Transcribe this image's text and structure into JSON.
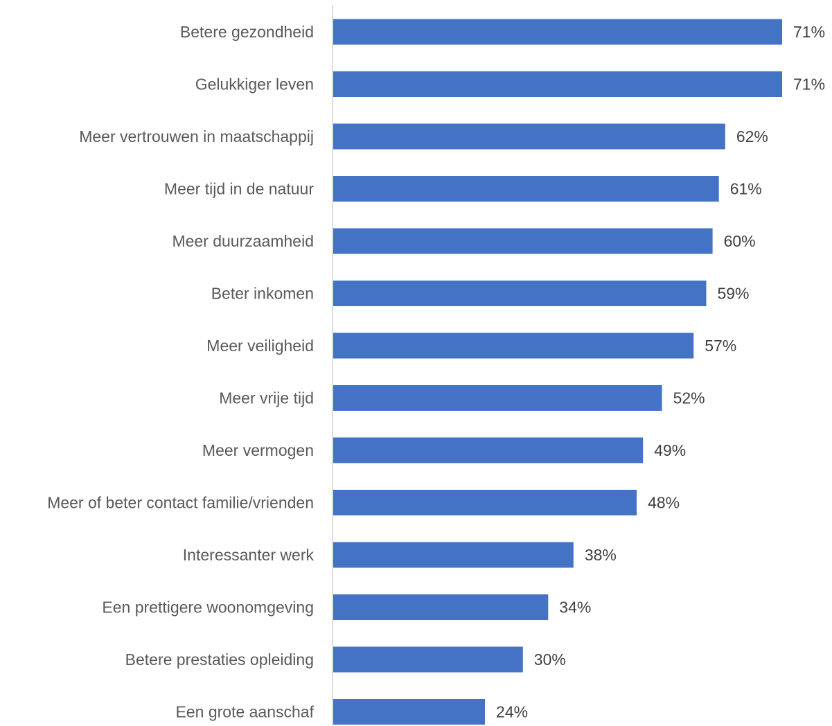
{
  "chart_data": {
    "type": "bar",
    "orientation": "horizontal",
    "categories": [
      "Betere gezondheid",
      "Gelukkiger leven",
      "Meer vertrouwen in maatschappij",
      "Meer tijd in de natuur",
      "Meer duurzaamheid",
      "Beter inkomen",
      "Meer veiligheid",
      "Meer vrije tijd",
      "Meer vermogen",
      "Meer of beter contact familie/vrienden",
      "Interessanter werk",
      "Een prettigere woonomgeving",
      "Betere prestaties opleiding",
      "Een grote aanschaf"
    ],
    "values": [
      71,
      71,
      62,
      61,
      60,
      59,
      57,
      52,
      49,
      48,
      38,
      34,
      30,
      24
    ],
    "value_labels": [
      "71%",
      "71%",
      "62%",
      "61%",
      "60%",
      "59%",
      "57%",
      "52%",
      "49%",
      "48%",
      "38%",
      "34%",
      "30%",
      "24%"
    ],
    "unit": "%",
    "xlim": [
      0,
      71
    ],
    "grid": false,
    "legend": "none",
    "bar_color": "#4472C4"
  }
}
